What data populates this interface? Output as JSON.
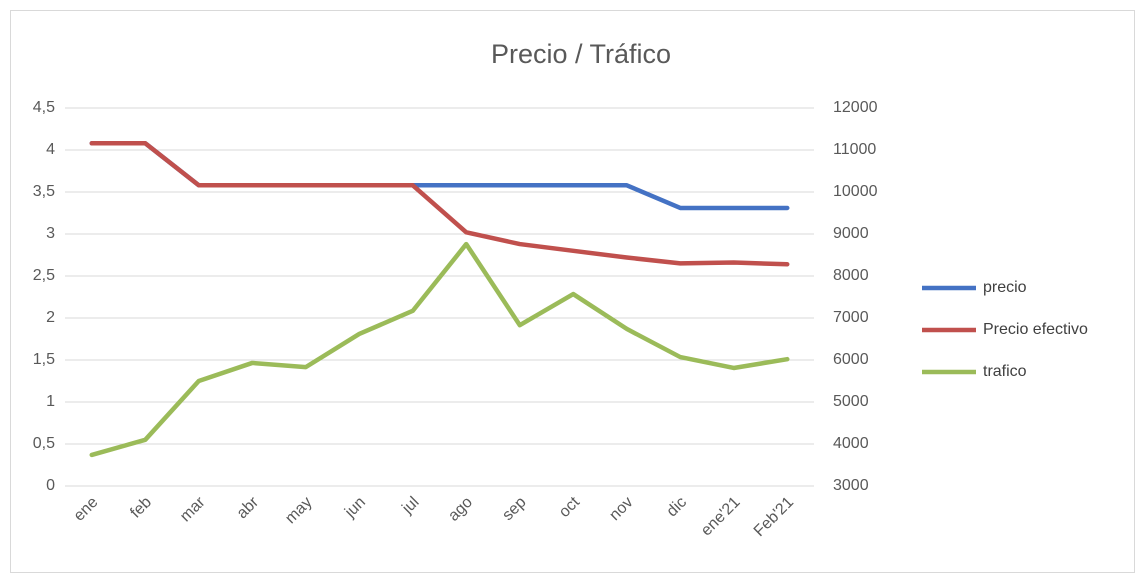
{
  "chart_data": {
    "type": "line",
    "title": "Precio / Tráfico",
    "categories": [
      "ene",
      "feb",
      "mar",
      "abr",
      "may",
      "jun",
      "jul",
      "ago",
      "sep",
      "oct",
      "nov",
      "dic",
      "ene'21",
      "Feb'21"
    ],
    "series": [
      {
        "name": "precio",
        "color": "#4472c4",
        "values": [
          4.08,
          4.08,
          3.58,
          3.58,
          3.58,
          3.58,
          3.58,
          3.58,
          3.58,
          3.58,
          3.58,
          3.31,
          3.31,
          3.31
        ]
      },
      {
        "name": "Precio efectivo",
        "color": "#c0504d",
        "values": [
          4.08,
          4.08,
          3.58,
          3.58,
          3.58,
          3.58,
          3.58,
          3.02,
          2.88,
          2.8,
          2.72,
          2.65,
          2.66,
          2.64
        ]
      },
      {
        "name": "trafico",
        "color": "#9bbb59",
        "axis": "y2",
        "values": [
          3740,
          4100,
          5500,
          5930,
          5830,
          6620,
          7170,
          8760,
          6830,
          7570,
          6740,
          6070,
          5810,
          6020
        ]
      }
    ],
    "ylim": [
      0,
      4.5
    ],
    "yticks": [
      0,
      {
        "value": 0.5,
        "label": "0,5"
      },
      1,
      {
        "value": 1.5,
        "label": "1,5"
      },
      2,
      {
        "value": 2.5,
        "label": "2,5"
      },
      3,
      {
        "value": 3.5,
        "label": "3,5"
      },
      4,
      {
        "value": 4.5,
        "label": "4,5"
      }
    ],
    "y2lim": [
      3000,
      12000
    ],
    "y2ticks": [
      3000,
      4000,
      5000,
      6000,
      7000,
      8000,
      9000,
      10000,
      11000,
      12000
    ],
    "grid": true,
    "legend": "right"
  }
}
